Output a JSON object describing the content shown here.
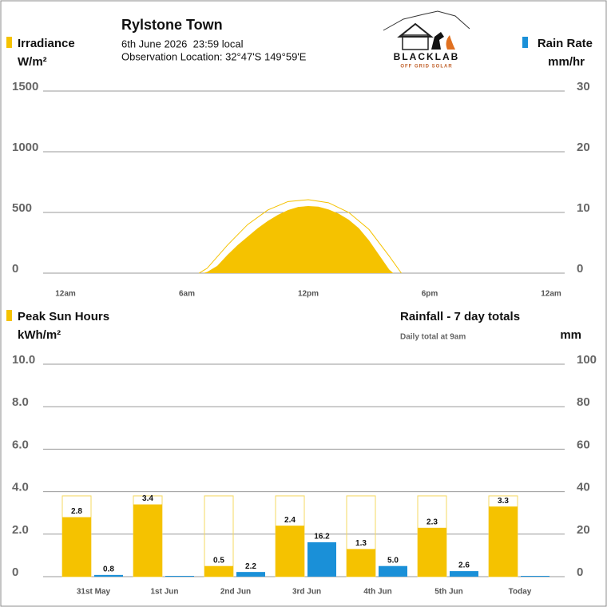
{
  "header": {
    "title": "Rylstone Town",
    "date": "6th June 2026  23:59 local",
    "location": "Observation Location: 32°47'S 149°59'E"
  },
  "logo": {
    "brand": "BLACKLAB",
    "tagline": "OFF GRID SOLAR"
  },
  "chart_data": [
    {
      "type": "area",
      "left_axis_label": "Irradiance",
      "left_axis_unit": "W/m²",
      "right_axis_label": "Rain Rate",
      "right_axis_unit": "mm/hr",
      "xlim": [
        0,
        24
      ],
      "xticks": [
        {
          "value": 0,
          "label": "12am"
        },
        {
          "value": 6,
          "label": "6am"
        },
        {
          "value": 12,
          "label": "12pm"
        },
        {
          "value": 18,
          "label": "6pm"
        },
        {
          "value": 24,
          "label": "12am"
        }
      ],
      "ylim": [
        0,
        1500
      ],
      "yticks": [
        0,
        500,
        1000,
        1500
      ],
      "y2lim": [
        0,
        30
      ],
      "y2ticks": [
        0,
        10,
        20,
        30
      ],
      "grid": true,
      "series": [
        {
          "name": "Irradiance",
          "color": "#f5c200",
          "x": [
            6.8,
            7,
            7.5,
            8,
            8.5,
            9,
            9.5,
            10,
            10.5,
            11,
            11.5,
            12,
            12.5,
            13,
            13.5,
            14,
            14.5,
            15,
            15.5,
            16,
            16.2
          ],
          "values": [
            0,
            10,
            60,
            150,
            230,
            300,
            370,
            430,
            480,
            520,
            545,
            553,
            548,
            525,
            490,
            440,
            370,
            270,
            150,
            30,
            0
          ]
        },
        {
          "name": "Rain Rate",
          "color": "#1a90d8",
          "axis": "y2",
          "x": [],
          "values": []
        }
      ],
      "clear_sky": {
        "color": "#f5c200",
        "x": [
          6.6,
          7,
          8,
          9,
          10,
          11,
          12,
          13,
          14,
          15,
          16,
          16.6
        ],
        "values": [
          0,
          40,
          230,
          400,
          520,
          590,
          605,
          580,
          500,
          360,
          140,
          0
        ]
      }
    },
    {
      "type": "bar",
      "left_axis_label": "Peak Sun Hours",
      "left_axis_unit": "kWh/m²",
      "right_axis_label": "Rainfall - 7 day totals",
      "right_axis_note": "Daily total at 9am",
      "right_axis_unit": "mm",
      "categories": [
        "31st May",
        "1st Jun",
        "2nd Jun",
        "3rd Jun",
        "4th Jun",
        "5th Jun",
        "Today"
      ],
      "ylim": [
        0,
        10
      ],
      "yticks": [
        0,
        {
          "value": 2,
          "label": "2.0"
        },
        {
          "value": 4,
          "label": "4.0"
        },
        {
          "value": 6,
          "label": "6.0"
        },
        {
          "value": 8,
          "label": "8.0"
        },
        {
          "value": 10,
          "label": "10.0"
        }
      ],
      "y2lim": [
        0,
        100
      ],
      "y2ticks": [
        0,
        20,
        40,
        60,
        80,
        100
      ],
      "grid": true,
      "series": [
        {
          "name": "Peak Sun Hours",
          "color": "#f5c200",
          "values": [
            2.8,
            3.4,
            0.5,
            2.4,
            1.3,
            2.3,
            3.3
          ]
        },
        {
          "name": "Rainfall",
          "color": "#1a90d8",
          "axis": "y2",
          "values": [
            0.8,
            0,
            2.2,
            16.2,
            5.0,
            2.6,
            0
          ],
          "value_labels": [
            "0.8",
            null,
            "2.2",
            "16.2",
            "5.0",
            "2.6",
            null
          ]
        }
      ],
      "clear_sky_values": [
        3.8,
        3.8,
        3.8,
        3.8,
        3.8,
        3.8,
        3.8
      ]
    }
  ]
}
